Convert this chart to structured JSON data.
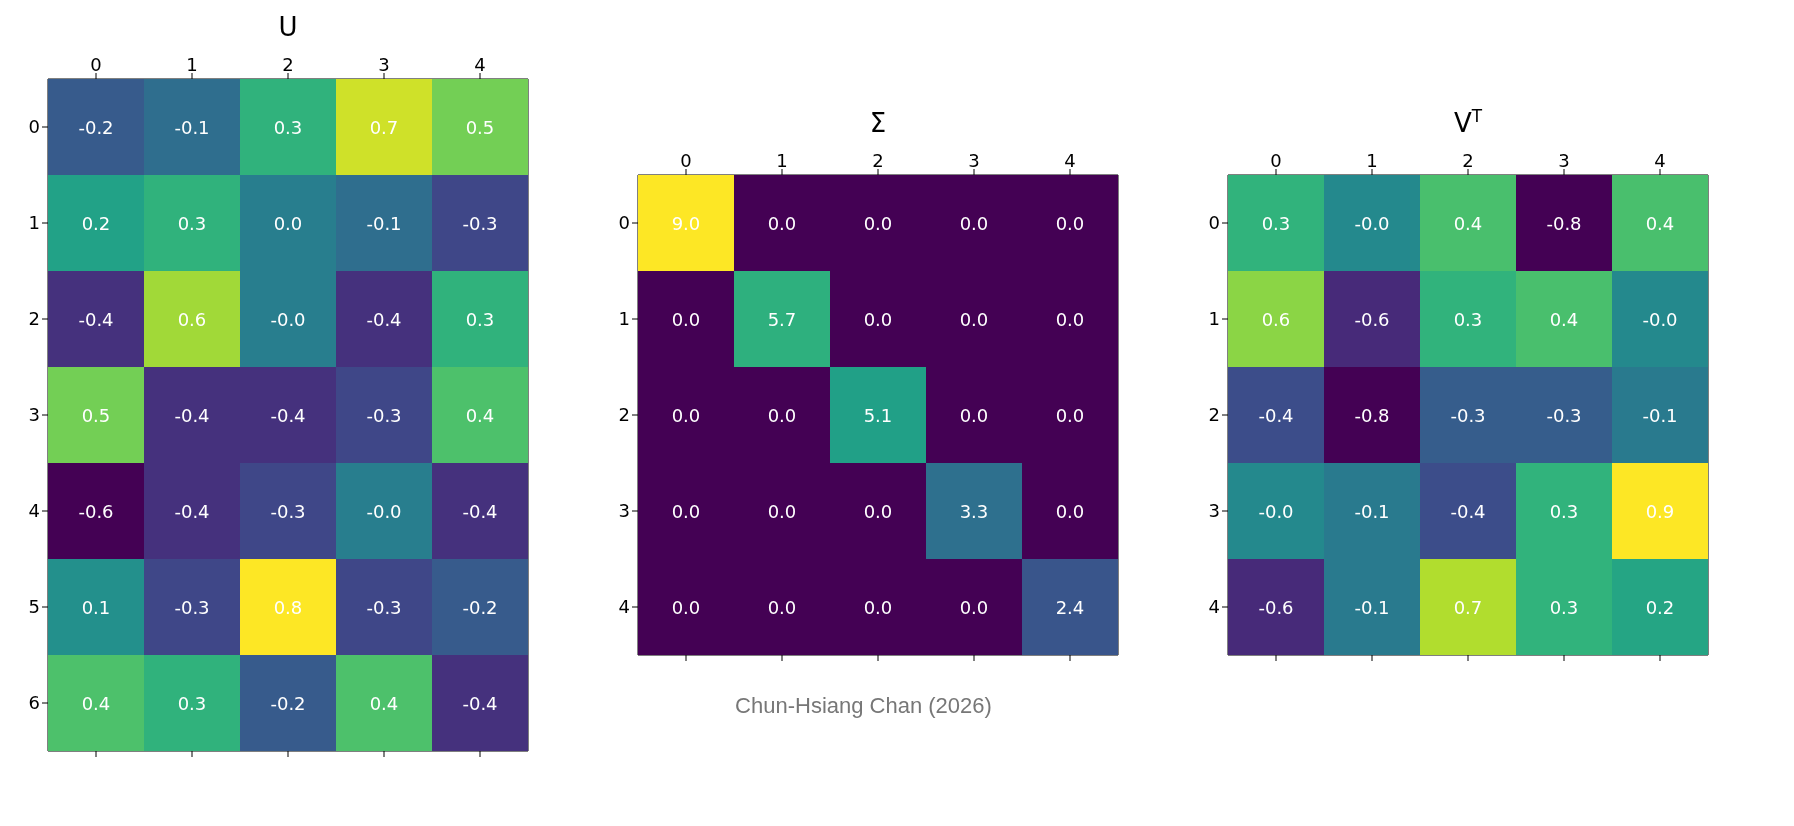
{
  "chart_data": [
    {
      "type": "heatmap",
      "title": "U",
      "categories": [
        "0",
        "1",
        "2",
        "3",
        "4"
      ],
      "y_categories": [
        "0",
        "1",
        "2",
        "3",
        "4",
        "5",
        "6"
      ],
      "cells": [
        [
          -0.2,
          -0.1,
          0.3,
          0.7,
          0.5
        ],
        [
          0.2,
          0.3,
          0.0,
          -0.1,
          -0.3
        ],
        [
          -0.4,
          0.6,
          0,
          -0.4,
          0.3
        ],
        [
          0.5,
          -0.4,
          -0.4,
          -0.3,
          0.4
        ],
        [
          -0.6,
          -0.4,
          -0.3,
          0,
          -0.4
        ],
        [
          0.1,
          -0.3,
          0.8,
          -0.3,
          -0.2
        ],
        [
          0.4,
          0.3,
          -0.2,
          0.4,
          -0.4
        ]
      ],
      "cell_labels": [
        [
          "-0.2",
          "-0.1",
          "0.3",
          "0.7",
          "0.5"
        ],
        [
          "0.2",
          "0.3",
          "0.0",
          "-0.1",
          "-0.3"
        ],
        [
          "-0.4",
          "0.6",
          "-0.0",
          "-0.4",
          "0.3"
        ],
        [
          "0.5",
          "-0.4",
          "-0.4",
          "-0.3",
          "0.4"
        ],
        [
          "-0.6",
          "-0.4",
          "-0.3",
          "-0.0",
          "-0.4"
        ],
        [
          "0.1",
          "-0.3",
          "0.8",
          "-0.3",
          "-0.2"
        ],
        [
          "0.4",
          "0.3",
          "-0.2",
          "0.4",
          "-0.4"
        ]
      ]
    },
    {
      "type": "heatmap",
      "title": "Σ",
      "categories": [
        "0",
        "1",
        "2",
        "3",
        "4"
      ],
      "y_categories": [
        "0",
        "1",
        "2",
        "3",
        "4"
      ],
      "cells": [
        [
          9.0,
          0,
          0,
          0,
          0
        ],
        [
          0,
          5.7,
          0,
          0,
          0
        ],
        [
          0,
          0,
          5.1,
          0,
          0
        ],
        [
          0,
          0,
          0,
          3.3,
          0
        ],
        [
          0,
          0,
          0,
          0,
          2.4
        ]
      ],
      "cell_labels": [
        [
          "9.0",
          "0.0",
          "0.0",
          "0.0",
          "0.0"
        ],
        [
          "0.0",
          "5.7",
          "0.0",
          "0.0",
          "0.0"
        ],
        [
          "0.0",
          "0.0",
          "5.1",
          "0.0",
          "0.0"
        ],
        [
          "0.0",
          "0.0",
          "0.0",
          "3.3",
          "0.0"
        ],
        [
          "0.0",
          "0.0",
          "0.0",
          "0.0",
          "2.4"
        ]
      ],
      "annotations": [
        "Chun-Hsiang Chan (2026)"
      ]
    },
    {
      "type": "heatmap",
      "title": "V$^{T}$",
      "categories": [
        "0",
        "1",
        "2",
        "3",
        "4"
      ],
      "y_categories": [
        "0",
        "1",
        "2",
        "3",
        "4"
      ],
      "cells": [
        [
          0.3,
          0,
          0.4,
          -0.8,
          0.4
        ],
        [
          0.6,
          -0.6,
          0.3,
          0.4,
          0
        ],
        [
          -0.4,
          -0.8,
          -0.3,
          -0.3,
          -0.1
        ],
        [
          0,
          -0.1,
          -0.4,
          0.3,
          0.9
        ],
        [
          -0.6,
          -0.1,
          0.7,
          0.3,
          0.2
        ]
      ],
      "cell_labels": [
        [
          "0.3",
          "-0.0",
          "0.4",
          "-0.8",
          "0.4"
        ],
        [
          "0.6",
          "-0.6",
          "0.3",
          "0.4",
          "-0.0"
        ],
        [
          "-0.4",
          "-0.8",
          "-0.3",
          "-0.3",
          "-0.1"
        ],
        [
          "-0.0",
          "-0.1",
          "-0.4",
          "0.3",
          "0.9"
        ],
        [
          "-0.6",
          "-0.1",
          "0.7",
          "0.3",
          "0.2"
        ]
      ]
    }
  ]
}
